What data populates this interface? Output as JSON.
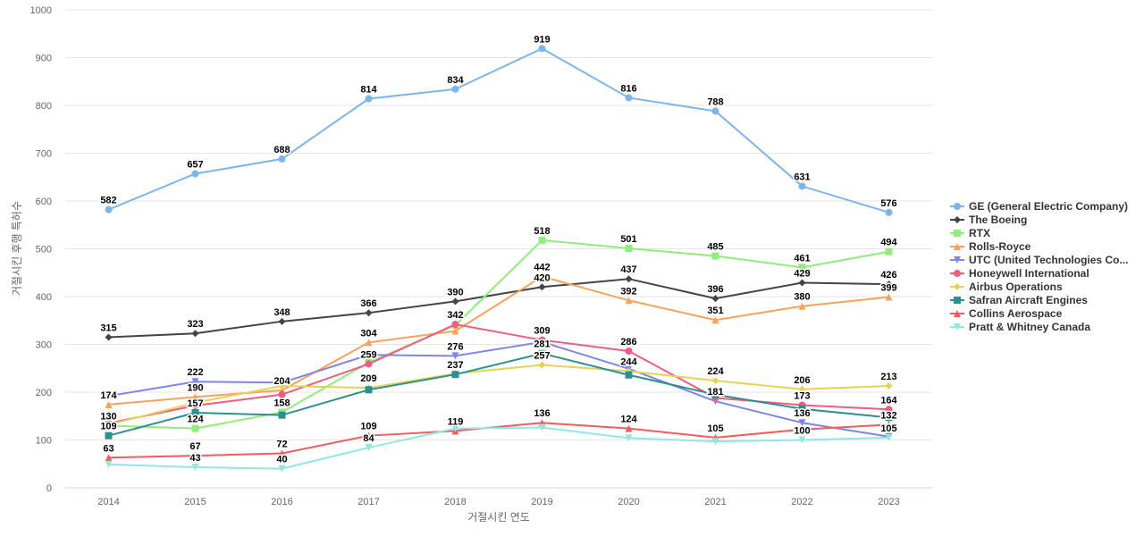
{
  "chart_data": {
    "type": "line",
    "title": "",
    "xlabel": "거절시킨 연도",
    "ylabel": "거절시킨 후행 특허수",
    "ylim": [
      0,
      1000
    ],
    "yticks": [
      0,
      100,
      200,
      300,
      400,
      500,
      600,
      700,
      800,
      900,
      1000
    ],
    "grid": true,
    "legend_position": "right",
    "categories": [
      "2014",
      "2015",
      "2016",
      "2017",
      "2018",
      "2019",
      "2020",
      "2021",
      "2022",
      "2023"
    ],
    "series": [
      {
        "name": "GE (General Electric Company)",
        "color": "#7cb5ec",
        "marker": "circle",
        "values": [
          582,
          657,
          688,
          814,
          834,
          919,
          816,
          788,
          631,
          576
        ],
        "data_labels": [
          582,
          657,
          688,
          814,
          834,
          919,
          816,
          788,
          631,
          576
        ]
      },
      {
        "name": "The Boeing",
        "color": "#434348",
        "marker": "diamond",
        "values": [
          315,
          323,
          348,
          366,
          390,
          420,
          437,
          396,
          429,
          426
        ],
        "data_labels": [
          315,
          323,
          348,
          366,
          390,
          420,
          437,
          396,
          429,
          426
        ]
      },
      {
        "name": "RTX",
        "color": "#90ed7d",
        "marker": "square",
        "values": [
          130,
          124,
          158,
          262,
          340,
          518,
          501,
          485,
          461,
          494
        ],
        "data_labels": [
          130,
          124,
          158,
          null,
          null,
          518,
          501,
          485,
          461,
          494
        ]
      },
      {
        "name": "Rolls-Royce",
        "color": "#f7a35c",
        "marker": "triangle",
        "values": [
          174,
          190,
          204,
          304,
          328,
          442,
          392,
          351,
          380,
          399
        ],
        "data_labels": [
          174,
          190,
          204,
          304,
          null,
          442,
          392,
          351,
          380,
          399
        ]
      },
      {
        "name": "UTC (United Technologies Co...",
        "color": "#8085e9",
        "marker": "triangle-down",
        "values": [
          192,
          222,
          220,
          278,
          276,
          305,
          249,
          181,
          136,
          107
        ],
        "data_labels": [
          null,
          222,
          null,
          null,
          276,
          null,
          null,
          181,
          136,
          null
        ]
      },
      {
        "name": "Honeywell International",
        "color": "#f15c80",
        "marker": "circle",
        "values": [
          135,
          172,
          195,
          259,
          342,
          309,
          286,
          188,
          173,
          164
        ],
        "data_labels": [
          null,
          null,
          null,
          259,
          342,
          309,
          286,
          null,
          173,
          164
        ]
      },
      {
        "name": "Airbus Operations",
        "color": "#e4d354",
        "marker": "diamond",
        "values": [
          132,
          178,
          213,
          209,
          239,
          257,
          244,
          224,
          206,
          213
        ],
        "data_labels": [
          null,
          null,
          null,
          209,
          null,
          257,
          244,
          224,
          206,
          213
        ]
      },
      {
        "name": "Safran Aircraft Engines",
        "color": "#2b908f",
        "marker": "square",
        "values": [
          109,
          157,
          152,
          205,
          237,
          281,
          236,
          195,
          165,
          147
        ],
        "data_labels": [
          109,
          157,
          null,
          null,
          237,
          281,
          null,
          null,
          null,
          null
        ]
      },
      {
        "name": "Collins Aerospace",
        "color": "#f45b5b",
        "marker": "triangle",
        "values": [
          63,
          67,
          72,
          109,
          119,
          136,
          124,
          105,
          122,
          132
        ],
        "data_labels": [
          63,
          67,
          72,
          109,
          119,
          136,
          124,
          105,
          null,
          132
        ]
      },
      {
        "name": "Pratt & Whitney Canada",
        "color": "#91e8e1",
        "marker": "triangle-down",
        "values": [
          49,
          43,
          40,
          84,
          124,
          126,
          104,
          97,
          100,
          105
        ],
        "data_labels": [
          null,
          43,
          40,
          84,
          null,
          null,
          null,
          null,
          100,
          105
        ]
      }
    ]
  }
}
